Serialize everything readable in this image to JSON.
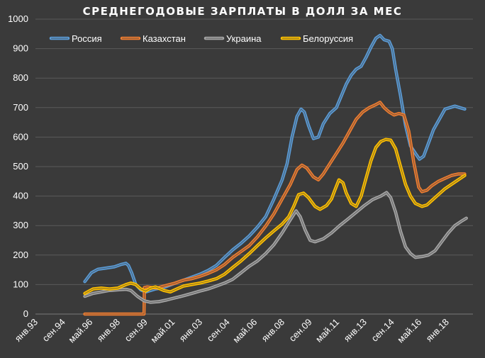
{
  "chart_data": {
    "type": "line",
    "title": "СРЕДНЕГОДОВЫЕ ЗАРПЛАТЫ В ДОЛЛ ЗА МЕС",
    "xlabel": "",
    "ylabel": "",
    "ylim": [
      0,
      1000
    ],
    "yticks": [
      0,
      100,
      200,
      300,
      400,
      500,
      600,
      700,
      800,
      900,
      1000
    ],
    "xlim": [
      1993.0,
      2019.6
    ],
    "xticks": [
      {
        "label": "янв.93",
        "value": 1993.0
      },
      {
        "label": "сен.94",
        "value": 1994.67
      },
      {
        "label": "май.96",
        "value": 1996.33
      },
      {
        "label": "янв.98",
        "value": 1998.0
      },
      {
        "label": "сен.99",
        "value": 1999.67
      },
      {
        "label": "май.01",
        "value": 2001.33
      },
      {
        "label": "янв.03",
        "value": 2003.0
      },
      {
        "label": "сен.04",
        "value": 2004.67
      },
      {
        "label": "май.06",
        "value": 2006.33
      },
      {
        "label": "янв.08",
        "value": 2008.0
      },
      {
        "label": "сен.09",
        "value": 2009.67
      },
      {
        "label": "май.11",
        "value": 2011.33
      },
      {
        "label": "янв.13",
        "value": 2013.0
      },
      {
        "label": "сен.14",
        "value": 2014.67
      },
      {
        "label": "май.16",
        "value": 2016.33
      },
      {
        "label": "янв.18",
        "value": 2018.0
      }
    ],
    "grid": true,
    "legend": "top-left",
    "series": [
      {
        "name": "Россия",
        "color": "#5b9bd5",
        "points": [
          [
            1996.0,
            110
          ],
          [
            1996.4,
            140
          ],
          [
            1996.8,
            152
          ],
          [
            1997.3,
            156
          ],
          [
            1997.8,
            160
          ],
          [
            1998.2,
            168
          ],
          [
            1998.5,
            172
          ],
          [
            1998.65,
            165
          ],
          [
            1998.85,
            140
          ],
          [
            1999.1,
            100
          ],
          [
            1999.4,
            82
          ],
          [
            1999.7,
            75
          ],
          [
            2000.0,
            80
          ],
          [
            2000.3,
            85
          ],
          [
            2000.8,
            90
          ],
          [
            2001.5,
            105
          ],
          [
            2002.0,
            115
          ],
          [
            2002.5,
            125
          ],
          [
            2003.0,
            135
          ],
          [
            2003.5,
            148
          ],
          [
            2004.0,
            165
          ],
          [
            2004.5,
            192
          ],
          [
            2005.0,
            218
          ],
          [
            2005.5,
            240
          ],
          [
            2006.0,
            265
          ],
          [
            2006.5,
            295
          ],
          [
            2007.0,
            330
          ],
          [
            2007.5,
            390
          ],
          [
            2008.0,
            455
          ],
          [
            2008.3,
            510
          ],
          [
            2008.6,
            600
          ],
          [
            2008.9,
            670
          ],
          [
            2009.15,
            695
          ],
          [
            2009.35,
            685
          ],
          [
            2009.6,
            640
          ],
          [
            2009.9,
            595
          ],
          [
            2010.2,
            600
          ],
          [
            2010.5,
            645
          ],
          [
            2010.9,
            680
          ],
          [
            2011.3,
            700
          ],
          [
            2011.6,
            740
          ],
          [
            2011.9,
            780
          ],
          [
            2012.2,
            810
          ],
          [
            2012.5,
            830
          ],
          [
            2012.8,
            840
          ],
          [
            2013.1,
            870
          ],
          [
            2013.4,
            905
          ],
          [
            2013.7,
            935
          ],
          [
            2013.95,
            945
          ],
          [
            2014.2,
            930
          ],
          [
            2014.5,
            925
          ],
          [
            2014.7,
            900
          ],
          [
            2014.9,
            830
          ],
          [
            2015.2,
            740
          ],
          [
            2015.5,
            640
          ],
          [
            2015.8,
            570
          ],
          [
            2016.1,
            545
          ],
          [
            2016.35,
            525
          ],
          [
            2016.6,
            535
          ],
          [
            2016.9,
            580
          ],
          [
            2017.2,
            625
          ],
          [
            2017.6,
            665
          ],
          [
            2017.9,
            695
          ],
          [
            2018.2,
            700
          ],
          [
            2018.5,
            705
          ],
          [
            2018.8,
            700
          ],
          [
            2019.1,
            695
          ]
        ]
      },
      {
        "name": "Казахстан",
        "color": "#ed7d31",
        "points": [
          [
            1996.0,
            0
          ],
          [
            1999.6,
            0
          ],
          [
            1999.62,
            90
          ],
          [
            1999.8,
            92
          ],
          [
            2000.1,
            90
          ],
          [
            2000.4,
            88
          ],
          [
            2000.8,
            95
          ],
          [
            2001.5,
            105
          ],
          [
            2002.0,
            115
          ],
          [
            2002.5,
            120
          ],
          [
            2003.0,
            128
          ],
          [
            2003.5,
            138
          ],
          [
            2004.0,
            150
          ],
          [
            2004.5,
            168
          ],
          [
            2005.0,
            192
          ],
          [
            2005.5,
            212
          ],
          [
            2006.0,
            232
          ],
          [
            2006.5,
            262
          ],
          [
            2007.0,
            298
          ],
          [
            2007.5,
            340
          ],
          [
            2008.0,
            390
          ],
          [
            2008.5,
            440
          ],
          [
            2008.9,
            490
          ],
          [
            2009.2,
            505
          ],
          [
            2009.5,
            495
          ],
          [
            2009.9,
            465
          ],
          [
            2010.2,
            455
          ],
          [
            2010.5,
            475
          ],
          [
            2010.9,
            510
          ],
          [
            2011.3,
            545
          ],
          [
            2011.7,
            580
          ],
          [
            2012.1,
            620
          ],
          [
            2012.5,
            660
          ],
          [
            2012.9,
            685
          ],
          [
            2013.3,
            700
          ],
          [
            2013.7,
            710
          ],
          [
            2013.95,
            718
          ],
          [
            2014.2,
            700
          ],
          [
            2014.5,
            685
          ],
          [
            2014.8,
            675
          ],
          [
            2015.1,
            680
          ],
          [
            2015.4,
            675
          ],
          [
            2015.7,
            620
          ],
          [
            2016.0,
            515
          ],
          [
            2016.3,
            430
          ],
          [
            2016.5,
            415
          ],
          [
            2016.8,
            420
          ],
          [
            2017.1,
            435
          ],
          [
            2017.5,
            450
          ],
          [
            2017.9,
            460
          ],
          [
            2018.3,
            470
          ],
          [
            2018.7,
            475
          ],
          [
            2019.1,
            475
          ]
        ]
      },
      {
        "name": "Украина",
        "color": "#a5a5a5",
        "points": [
          [
            1996.0,
            60
          ],
          [
            1996.5,
            70
          ],
          [
            1997.0,
            75
          ],
          [
            1997.5,
            80
          ],
          [
            1998.0,
            82
          ],
          [
            1998.5,
            84
          ],
          [
            1998.8,
            80
          ],
          [
            1999.2,
            60
          ],
          [
            1999.6,
            45
          ],
          [
            2000.0,
            40
          ],
          [
            2000.5,
            42
          ],
          [
            2001.0,
            48
          ],
          [
            2001.5,
            55
          ],
          [
            2002.0,
            62
          ],
          [
            2002.5,
            70
          ],
          [
            2003.0,
            78
          ],
          [
            2003.5,
            85
          ],
          [
            2004.0,
            95
          ],
          [
            2004.5,
            105
          ],
          [
            2005.0,
            118
          ],
          [
            2005.5,
            140
          ],
          [
            2006.0,
            162
          ],
          [
            2006.5,
            180
          ],
          [
            2007.0,
            205
          ],
          [
            2007.5,
            235
          ],
          [
            2008.0,
            275
          ],
          [
            2008.5,
            320
          ],
          [
            2008.85,
            350
          ],
          [
            2009.1,
            330
          ],
          [
            2009.4,
            285
          ],
          [
            2009.7,
            250
          ],
          [
            2010.0,
            245
          ],
          [
            2010.5,
            255
          ],
          [
            2011.0,
            275
          ],
          [
            2011.5,
            300
          ],
          [
            2012.0,
            322
          ],
          [
            2012.5,
            345
          ],
          [
            2013.0,
            368
          ],
          [
            2013.5,
            388
          ],
          [
            2014.0,
            400
          ],
          [
            2014.35,
            412
          ],
          [
            2014.6,
            395
          ],
          [
            2014.9,
            345
          ],
          [
            2015.2,
            280
          ],
          [
            2015.5,
            228
          ],
          [
            2015.8,
            205
          ],
          [
            2016.1,
            192
          ],
          [
            2016.5,
            195
          ],
          [
            2016.9,
            200
          ],
          [
            2017.3,
            215
          ],
          [
            2017.7,
            245
          ],
          [
            2018.1,
            275
          ],
          [
            2018.5,
            300
          ],
          [
            2018.9,
            315
          ],
          [
            2019.2,
            325
          ]
        ]
      },
      {
        "name": "Белоруссия",
        "color": "#ffc000",
        "points": [
          [
            1996.0,
            70
          ],
          [
            1996.5,
            85
          ],
          [
            1997.0,
            88
          ],
          [
            1997.5,
            85
          ],
          [
            1998.0,
            88
          ],
          [
            1998.5,
            100
          ],
          [
            1998.8,
            105
          ],
          [
            1999.1,
            100
          ],
          [
            1999.4,
            85
          ],
          [
            1999.7,
            78
          ],
          [
            2000.0,
            88
          ],
          [
            2000.3,
            92
          ],
          [
            2000.8,
            80
          ],
          [
            2001.2,
            75
          ],
          [
            2001.6,
            85
          ],
          [
            2002.0,
            95
          ],
          [
            2002.5,
            100
          ],
          [
            2003.0,
            105
          ],
          [
            2003.5,
            112
          ],
          [
            2004.0,
            120
          ],
          [
            2004.5,
            135
          ],
          [
            2005.0,
            158
          ],
          [
            2005.5,
            180
          ],
          [
            2006.0,
            205
          ],
          [
            2006.5,
            232
          ],
          [
            2007.0,
            258
          ],
          [
            2007.5,
            282
          ],
          [
            2008.0,
            305
          ],
          [
            2008.4,
            330
          ],
          [
            2008.7,
            365
          ],
          [
            2009.0,
            405
          ],
          [
            2009.3,
            410
          ],
          [
            2009.6,
            395
          ],
          [
            2010.0,
            365
          ],
          [
            2010.3,
            355
          ],
          [
            2010.7,
            368
          ],
          [
            2011.0,
            390
          ],
          [
            2011.2,
            420
          ],
          [
            2011.45,
            455
          ],
          [
            2011.7,
            445
          ],
          [
            2011.9,
            410
          ],
          [
            2012.2,
            375
          ],
          [
            2012.5,
            365
          ],
          [
            2012.8,
            400
          ],
          [
            2013.1,
            460
          ],
          [
            2013.4,
            520
          ],
          [
            2013.7,
            565
          ],
          [
            2014.0,
            585
          ],
          [
            2014.3,
            592
          ],
          [
            2014.6,
            590
          ],
          [
            2014.9,
            560
          ],
          [
            2015.2,
            500
          ],
          [
            2015.5,
            440
          ],
          [
            2015.8,
            400
          ],
          [
            2016.1,
            375
          ],
          [
            2016.5,
            365
          ],
          [
            2016.8,
            370
          ],
          [
            2017.1,
            385
          ],
          [
            2017.5,
            405
          ],
          [
            2017.9,
            425
          ],
          [
            2018.3,
            440
          ],
          [
            2018.7,
            455
          ],
          [
            2019.1,
            470
          ]
        ]
      }
    ]
  }
}
